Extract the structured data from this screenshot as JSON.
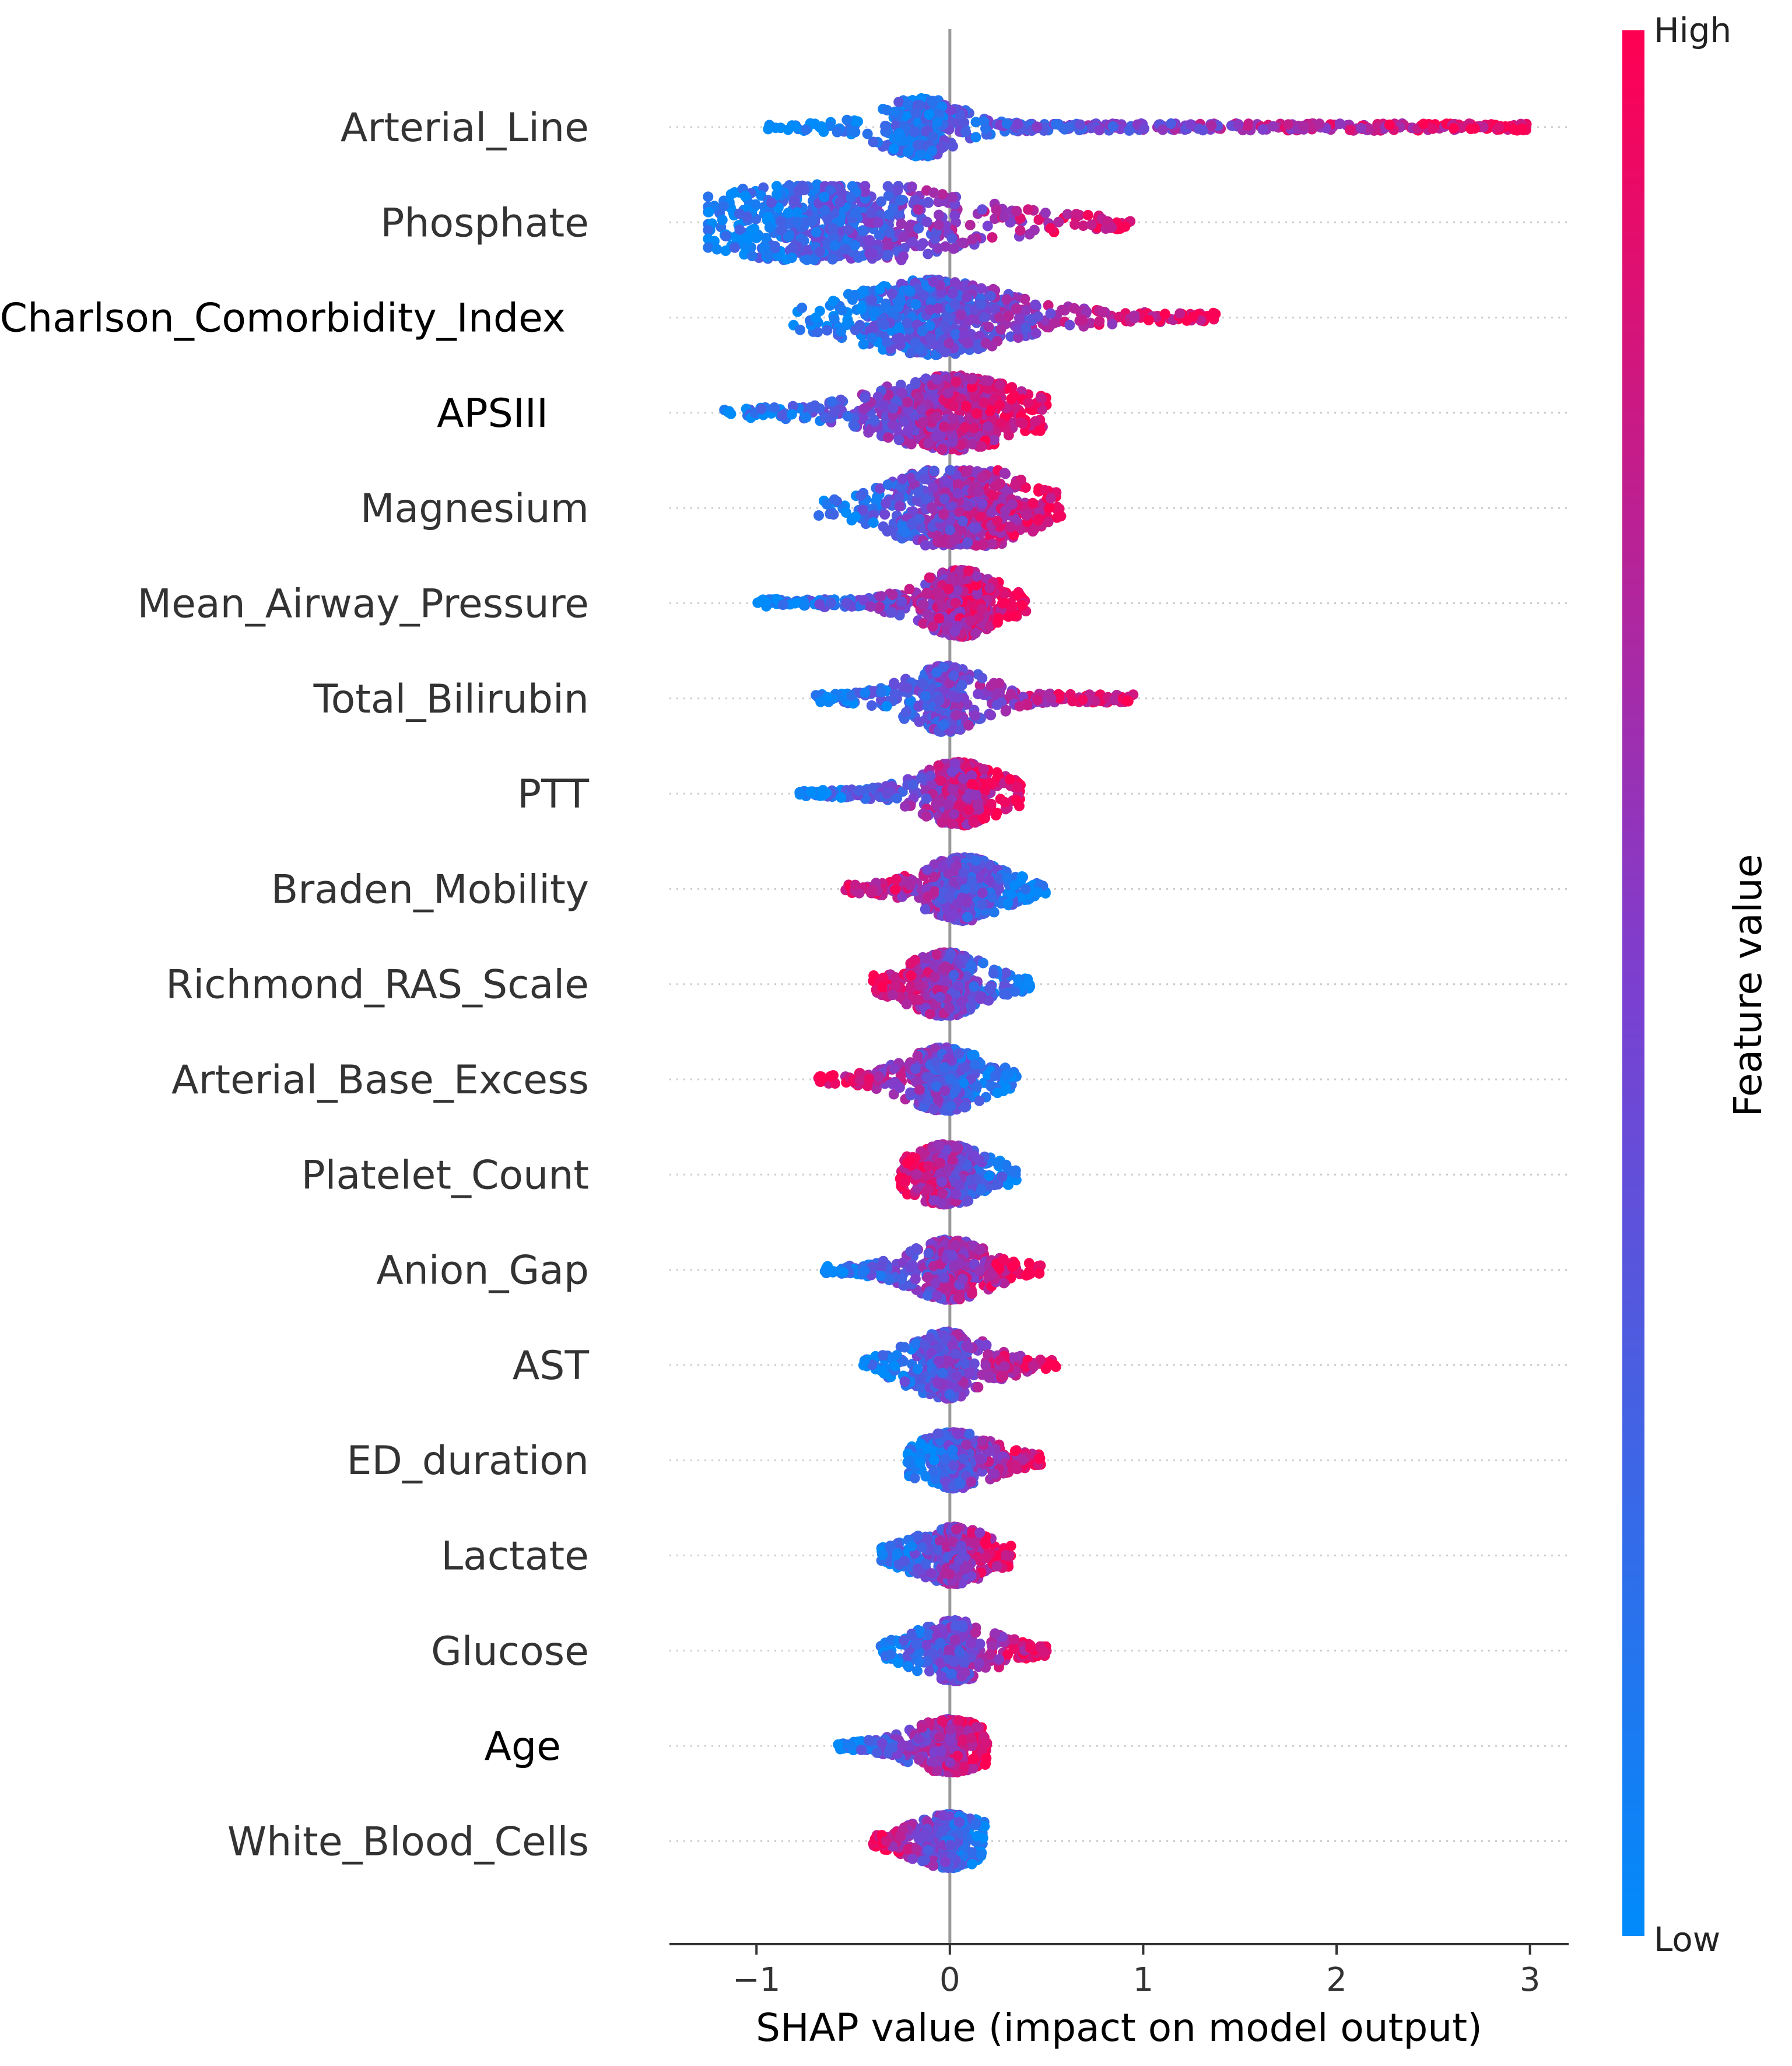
{
  "chart_data": {
    "type": "scatter",
    "subtype": "shap-beeswarm",
    "xlabel": "SHAP value (impact on model output)",
    "xlim": [
      -1.45,
      3.2
    ],
    "xticks": [
      -1,
      0,
      1,
      2,
      3
    ],
    "xtick_labels": [
      "−1",
      "0",
      "1",
      "2",
      "3"
    ],
    "colorbar": {
      "label": "Feature value",
      "high_label": "High",
      "low_label": "Low",
      "low_color": "#008bfb",
      "mid_color": "#7c3fd0",
      "high_color": "#ff0052"
    },
    "features": [
      {
        "name": "Arterial_Line",
        "min": -0.95,
        "max": 3.0,
        "peak": -0.15,
        "spread": 0.14,
        "width": 0.35,
        "skew": 1.0,
        "trend": 1,
        "tail_min": 0.35,
        "tail_max": 3.0
      },
      {
        "name": "Phosphate",
        "min": -1.25,
        "max": 1.0,
        "peak": -0.6,
        "spread": 0.55,
        "width": 0.55,
        "skew": 0.2,
        "trend": 1
      },
      {
        "name": "Charlson_Comorbidity_Index",
        "min": -0.82,
        "max": 1.38,
        "peak": -0.1,
        "spread": 0.4,
        "width": 0.45,
        "skew": 0.6,
        "trend": 1
      },
      {
        "name": "APSIII",
        "min": -1.17,
        "max": 0.5,
        "peak": 0.0,
        "spread": 0.35,
        "width": 0.45,
        "skew": -0.4,
        "trend": 1
      },
      {
        "name": "Magnesium",
        "min": -0.68,
        "max": 0.58,
        "peak": 0.05,
        "spread": 0.3,
        "width": 0.55,
        "skew": 0.0,
        "trend": 1
      },
      {
        "name": "Mean_Airway_Pressure",
        "min": -1.0,
        "max": 0.4,
        "peak": 0.05,
        "spread": 0.12,
        "width": 0.4,
        "skew": -0.6,
        "trend": 1
      },
      {
        "name": "Total_Bilirubin",
        "min": -0.7,
        "max": 0.95,
        "peak": -0.02,
        "spread": 0.07,
        "width": 0.4,
        "skew": 0.3,
        "trend": 1
      },
      {
        "name": "PTT",
        "min": -0.78,
        "max": 0.37,
        "peak": 0.05,
        "spread": 0.1,
        "width": 0.38,
        "skew": -0.5,
        "trend": 1
      },
      {
        "name": "Braden_Mobility",
        "min": -0.55,
        "max": 0.5,
        "peak": 0.07,
        "spread": 0.12,
        "width": 0.38,
        "skew": 0.0,
        "trend": -1
      },
      {
        "name": "Richmond_RAS_Scale",
        "min": -0.4,
        "max": 0.42,
        "peak": -0.02,
        "spread": 0.12,
        "width": 0.38,
        "skew": -0.2,
        "trend": -1
      },
      {
        "name": "Arterial_Base_Excess",
        "min": -0.68,
        "max": 0.35,
        "peak": -0.03,
        "spread": 0.12,
        "width": 0.38,
        "skew": -0.3,
        "trend": -1
      },
      {
        "name": "Platelet_Count",
        "min": -0.26,
        "max": 0.35,
        "peak": -0.02,
        "spread": 0.09,
        "width": 0.36,
        "skew": 0.1,
        "trend": -1
      },
      {
        "name": "Anion_Gap",
        "min": -0.65,
        "max": 0.47,
        "peak": 0.0,
        "spread": 0.08,
        "width": 0.36,
        "skew": -0.3,
        "trend": 1
      },
      {
        "name": "AST",
        "min": -0.45,
        "max": 0.55,
        "peak": -0.01,
        "spread": 0.08,
        "width": 0.4,
        "skew": 0.0,
        "trend": 1
      },
      {
        "name": "ED_duration",
        "min": -0.22,
        "max": 0.47,
        "peak": 0.02,
        "spread": 0.07,
        "width": 0.34,
        "skew": 0.2,
        "trend": 1
      },
      {
        "name": "Lactate",
        "min": -0.36,
        "max": 0.32,
        "peak": 0.02,
        "spread": 0.07,
        "width": 0.34,
        "skew": -0.1,
        "trend": 1
      },
      {
        "name": "Glucose",
        "min": -0.36,
        "max": 0.5,
        "peak": 0.02,
        "spread": 0.06,
        "width": 0.36,
        "skew": 0.1,
        "trend": 1
      },
      {
        "name": "Age",
        "min": -0.58,
        "max": 0.2,
        "peak": 0.0,
        "spread": 0.06,
        "width": 0.32,
        "skew": -0.4,
        "trend": 1
      },
      {
        "name": "White_Blood_Cells",
        "min": -0.4,
        "max": 0.18,
        "peak": 0.0,
        "spread": 0.06,
        "width": 0.32,
        "skew": -0.3,
        "trend": -1
      }
    ]
  }
}
